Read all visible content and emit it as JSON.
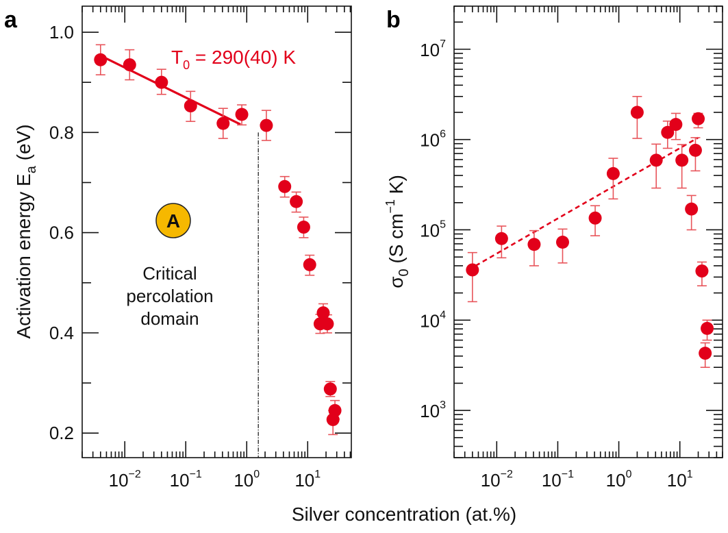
{
  "colors": {
    "points": "#e2001a",
    "error_bars": "#e8545a",
    "badge_fill": "#f6b800",
    "axis": "#111111"
  },
  "xlabel": "Silver concentration (at.%)",
  "chart_data": [
    {
      "panel": "a",
      "type": "scatter",
      "xscale": "log",
      "yscale": "linear",
      "xlim": [
        0.002,
        52
      ],
      "ylim": [
        0.151,
        1.052
      ],
      "ylabel_main": "Activation energy E",
      "ylabel_sub": "a",
      "ylabel_tail": " (eV)",
      "xticks": [
        {
          "value": 0.01,
          "base": "10",
          "exp": "−2"
        },
        {
          "value": 0.1,
          "base": "10",
          "exp": "−1"
        },
        {
          "value": 1,
          "base": "10",
          "exp": "0"
        },
        {
          "value": 10,
          "base": "10",
          "exp": "1"
        }
      ],
      "yticks": [
        {
          "value": 0.2,
          "label": "0.2"
        },
        {
          "value": 0.4,
          "label": "0.4"
        },
        {
          "value": 0.6,
          "label": "0.6"
        },
        {
          "value": 0.8,
          "label": "0.8"
        },
        {
          "value": 1.0,
          "label": "1.0"
        }
      ],
      "points": [
        {
          "x": 0.004,
          "y": 0.945,
          "lo": 0.915,
          "hi": 0.975
        },
        {
          "x": 0.012,
          "y": 0.935,
          "lo": 0.905,
          "hi": 0.965
        },
        {
          "x": 0.04,
          "y": 0.9,
          "lo": 0.876,
          "hi": 0.926
        },
        {
          "x": 0.12,
          "y": 0.853,
          "lo": 0.822,
          "hi": 0.882
        },
        {
          "x": 0.41,
          "y": 0.818,
          "lo": 0.788,
          "hi": 0.848
        },
        {
          "x": 0.83,
          "y": 0.836,
          "lo": 0.815,
          "hi": 0.855
        },
        {
          "x": 2.1,
          "y": 0.814,
          "lo": 0.784,
          "hi": 0.844
        },
        {
          "x": 4.2,
          "y": 0.692,
          "lo": 0.671,
          "hi": 0.712
        },
        {
          "x": 6.5,
          "y": 0.662,
          "lo": 0.641,
          "hi": 0.681
        },
        {
          "x": 8.6,
          "y": 0.611,
          "lo": 0.59,
          "hi": 0.631
        },
        {
          "x": 10.8,
          "y": 0.536,
          "lo": 0.515,
          "hi": 0.555
        },
        {
          "x": 18,
          "y": 0.44,
          "lo": 0.42,
          "hi": 0.458
        },
        {
          "x": 16,
          "y": 0.418,
          "lo": 0.399,
          "hi": 0.437
        },
        {
          "x": 21,
          "y": 0.418,
          "lo": 0.4,
          "hi": 0.436
        },
        {
          "x": 23.5,
          "y": 0.288,
          "lo": 0.273,
          "hi": 0.303
        },
        {
          "x": 28,
          "y": 0.245,
          "lo": 0.228,
          "hi": 0.265
        },
        {
          "x": 26,
          "y": 0.227,
          "lo": 0.197,
          "hi": 0.245
        }
      ],
      "fit": {
        "style": "solid",
        "x": [
          0.0047,
          0.79
        ],
        "y": [
          0.949,
          0.816
        ]
      },
      "vline": {
        "x": 1.55,
        "y_from": 0.8,
        "style": "dash-dot"
      },
      "annotations": {
        "fit_label_main": "T",
        "fit_label_sub": "0",
        "fit_label_tail": " = 290(40) K",
        "badge": "A",
        "region_lines": [
          "Critical",
          "percolation",
          "domain"
        ]
      }
    },
    {
      "panel": "b",
      "type": "scatter",
      "xscale": "log",
      "yscale": "log",
      "xlim": [
        0.002,
        50
      ],
      "ylim": [
        300,
        30000000
      ],
      "ylabel_main": "σ",
      "ylabel_sub": "0",
      "ylabel_mid": " (S cm",
      "ylabel_sup": "−1",
      "ylabel_tail": " K)",
      "xticks": [
        {
          "value": 0.01,
          "base": "10",
          "exp": "−2"
        },
        {
          "value": 0.1,
          "base": "10",
          "exp": "−1"
        },
        {
          "value": 1,
          "base": "10",
          "exp": "0"
        },
        {
          "value": 10,
          "base": "10",
          "exp": "1"
        }
      ],
      "yticks": [
        {
          "value": 1000,
          "base": "10",
          "exp": "3"
        },
        {
          "value": 10000,
          "base": "10",
          "exp": "4"
        },
        {
          "value": 100000,
          "base": "10",
          "exp": "5"
        },
        {
          "value": 1000000,
          "base": "10",
          "exp": "6"
        },
        {
          "value": 10000000,
          "base": "10",
          "exp": "7"
        }
      ],
      "points": [
        {
          "x": 0.004,
          "y": 36000,
          "lo": 16000,
          "hi": 56000
        },
        {
          "x": 0.012,
          "y": 80000,
          "lo": 49000,
          "hi": 110000
        },
        {
          "x": 0.041,
          "y": 69000,
          "lo": 40000,
          "hi": 98000
        },
        {
          "x": 0.12,
          "y": 73000,
          "lo": 43000,
          "hi": 102000
        },
        {
          "x": 0.41,
          "y": 135000,
          "lo": 86000,
          "hi": 185000
        },
        {
          "x": 0.81,
          "y": 420000,
          "lo": 220000,
          "hi": 620000
        },
        {
          "x": 2.0,
          "y": 2000000,
          "lo": 1030000,
          "hi": 3000000
        },
        {
          "x": 4.1,
          "y": 590000,
          "lo": 290000,
          "hi": 890000
        },
        {
          "x": 6.3,
          "y": 1200000,
          "lo": 800000,
          "hi": 1600000
        },
        {
          "x": 8.6,
          "y": 1470000,
          "lo": 1000000,
          "hi": 1950000
        },
        {
          "x": 10.8,
          "y": 590000,
          "lo": 290000,
          "hi": 880000
        },
        {
          "x": 15.5,
          "y": 170000,
          "lo": 100000,
          "hi": 240000
        },
        {
          "x": 18,
          "y": 760000,
          "lo": 450000,
          "hi": 1050000
        },
        {
          "x": 20,
          "y": 1700000,
          "lo": 1350000,
          "hi": 1950000
        },
        {
          "x": 23,
          "y": 35000,
          "lo": 24000,
          "hi": 44000
        },
        {
          "x": 28,
          "y": 8100,
          "lo": 6000,
          "hi": 10000
        },
        {
          "x": 26,
          "y": 4300,
          "lo": 3000,
          "hi": 5600
        }
      ],
      "fit": {
        "style": "dashed",
        "x": [
          0.0045,
          20
        ],
        "y": [
          40000,
          1050000
        ]
      }
    }
  ]
}
